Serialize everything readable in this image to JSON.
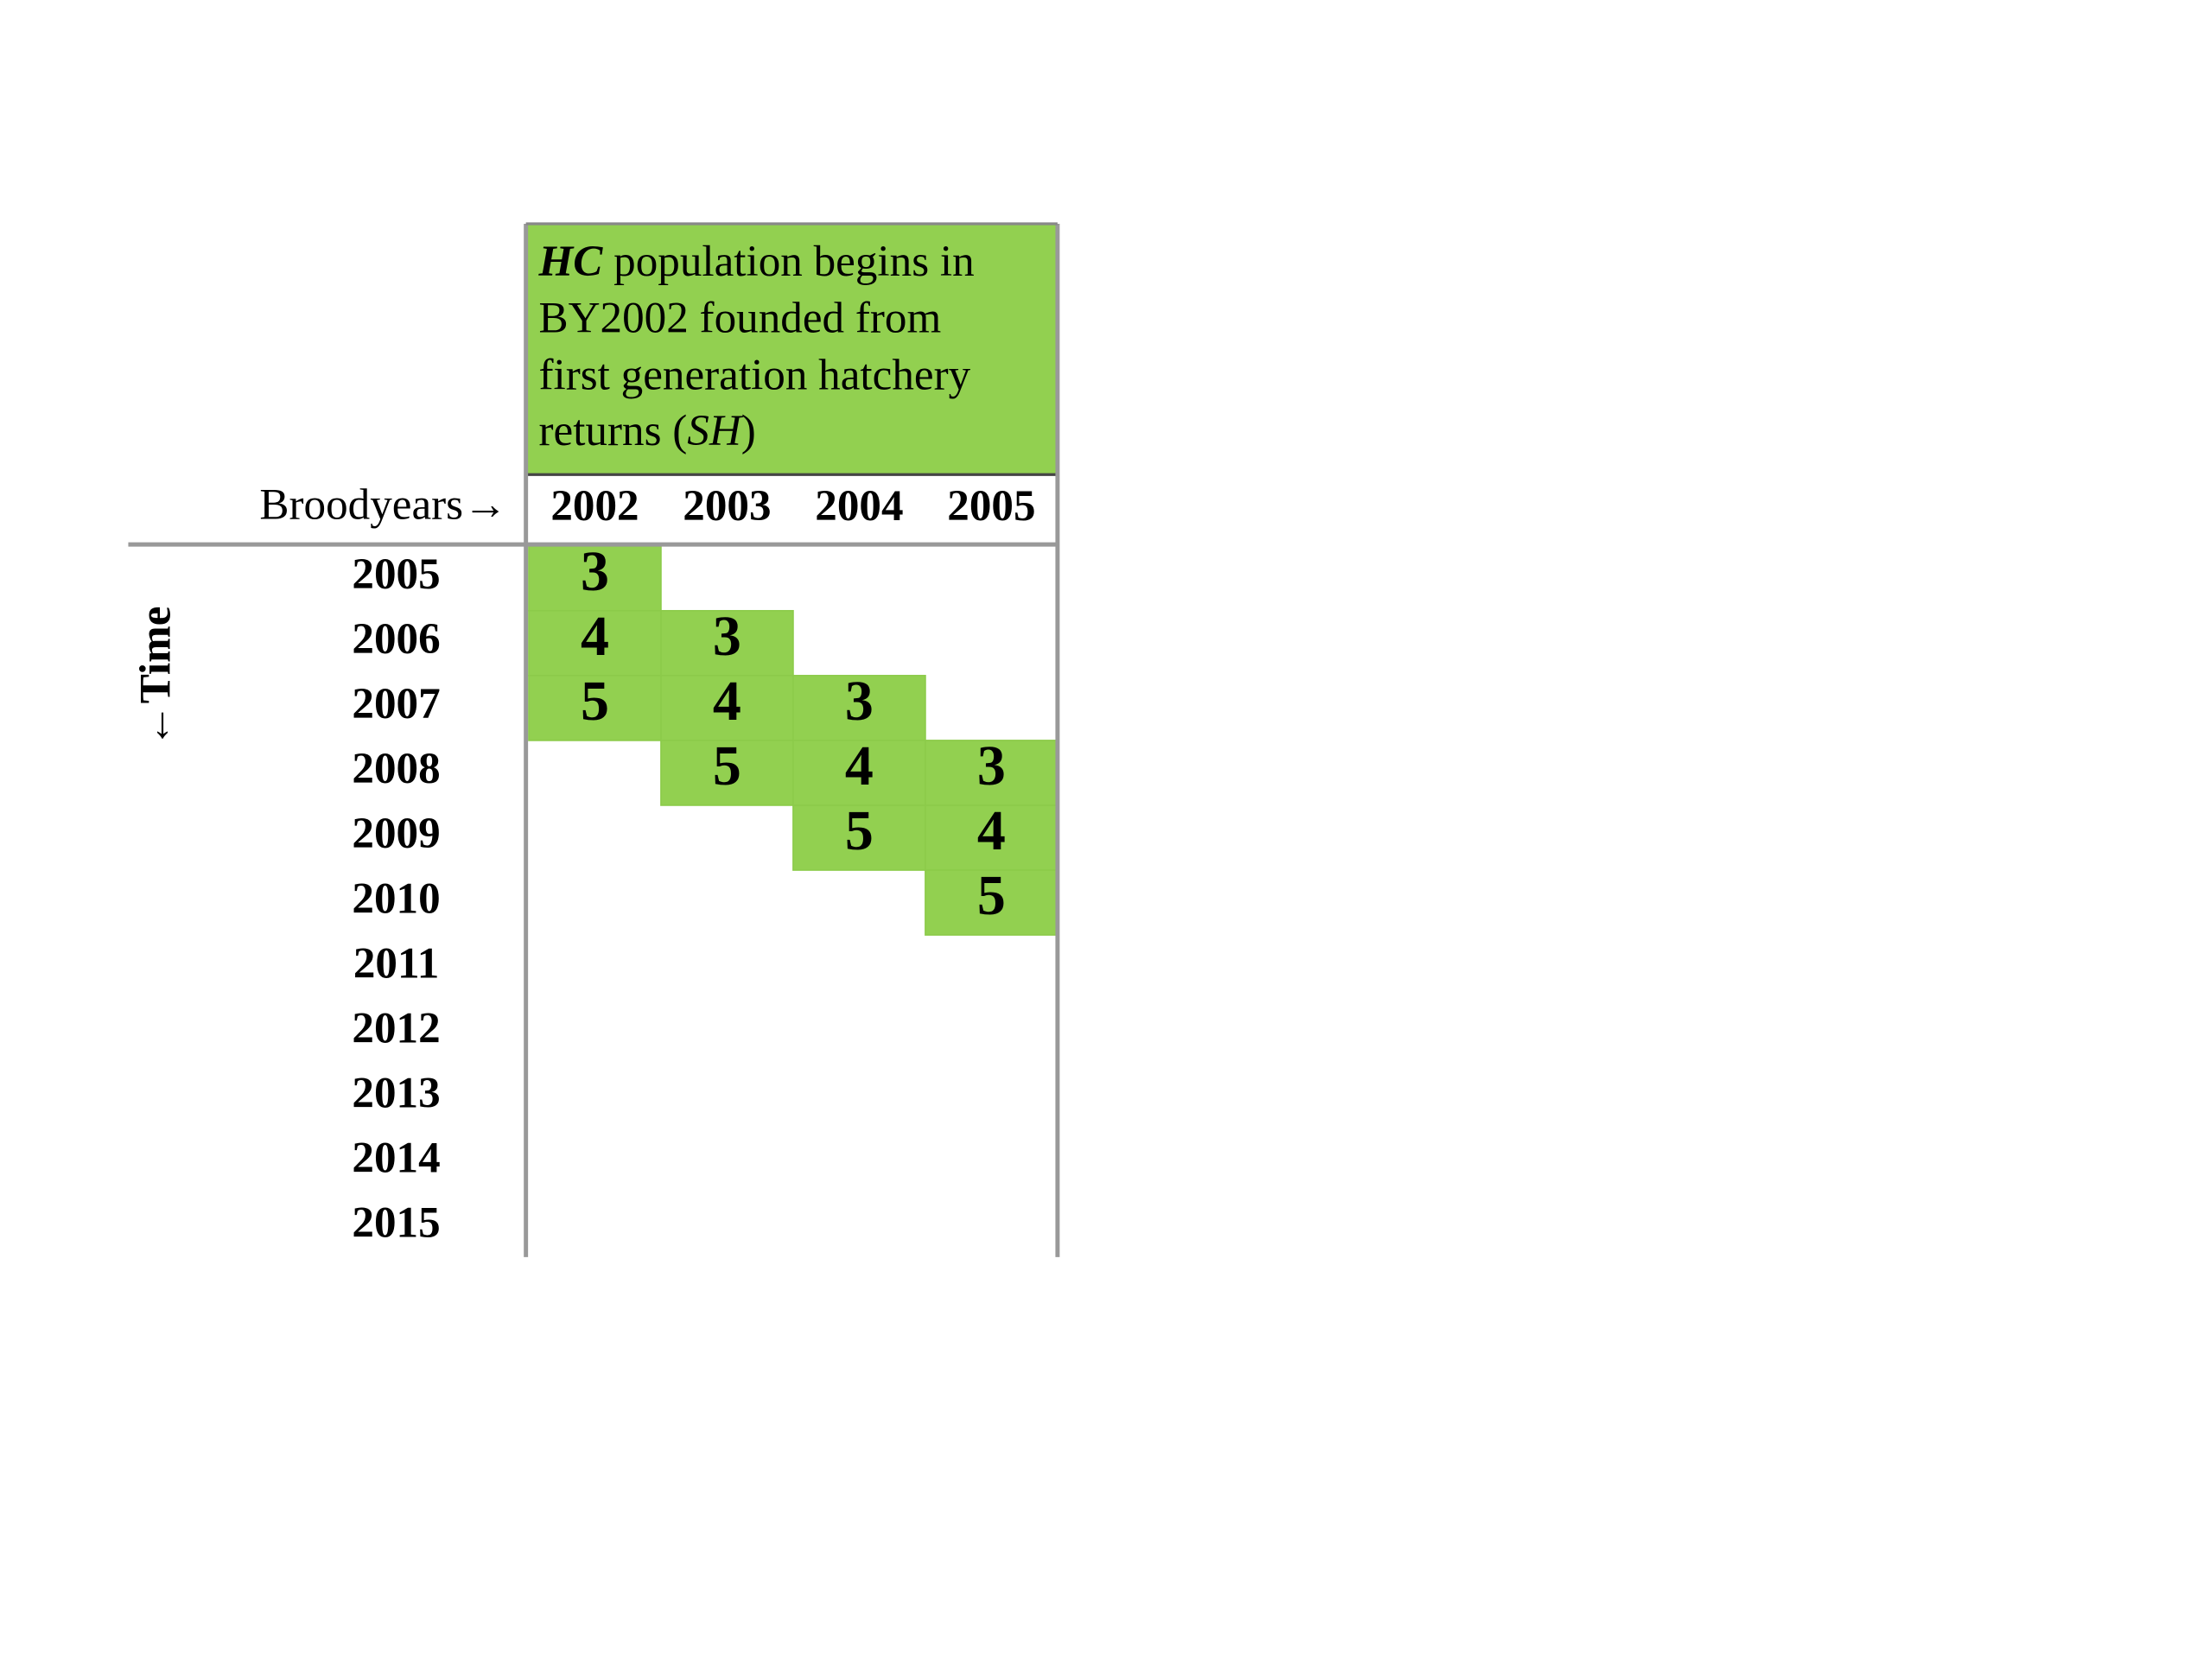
{
  "header": {
    "lines": [
      [
        "HC",
        " population begins in"
      ],
      [
        "BY2002 founded from"
      ],
      [
        "first generation hatchery"
      ],
      [
        "returns (",
        "SH",
        ")"
      ]
    ]
  },
  "table": {
    "corner_label": "Broodyears→",
    "time_label": "←Time",
    "columns": [
      "2002",
      "2003",
      "2004",
      "2005"
    ],
    "rows": [
      {
        "year": "2005",
        "cells": [
          3,
          null,
          null,
          null
        ]
      },
      {
        "year": "2006",
        "cells": [
          4,
          3,
          null,
          null
        ]
      },
      {
        "year": "2007",
        "cells": [
          5,
          4,
          3,
          null
        ]
      },
      {
        "year": "2008",
        "cells": [
          null,
          5,
          4,
          3
        ]
      },
      {
        "year": "2009",
        "cells": [
          null,
          null,
          5,
          4
        ]
      },
      {
        "year": "2010",
        "cells": [
          null,
          null,
          null,
          5
        ]
      },
      {
        "year": "2011",
        "cells": [
          null,
          null,
          null,
          null
        ]
      },
      {
        "year": "2012",
        "cells": [
          null,
          null,
          null,
          null
        ]
      },
      {
        "year": "2013",
        "cells": [
          null,
          null,
          null,
          null
        ]
      },
      {
        "year": "2014",
        "cells": [
          null,
          null,
          null,
          null
        ]
      },
      {
        "year": "2015",
        "cells": [
          null,
          null,
          null,
          null
        ]
      }
    ],
    "fill_color": "#92d050"
  }
}
